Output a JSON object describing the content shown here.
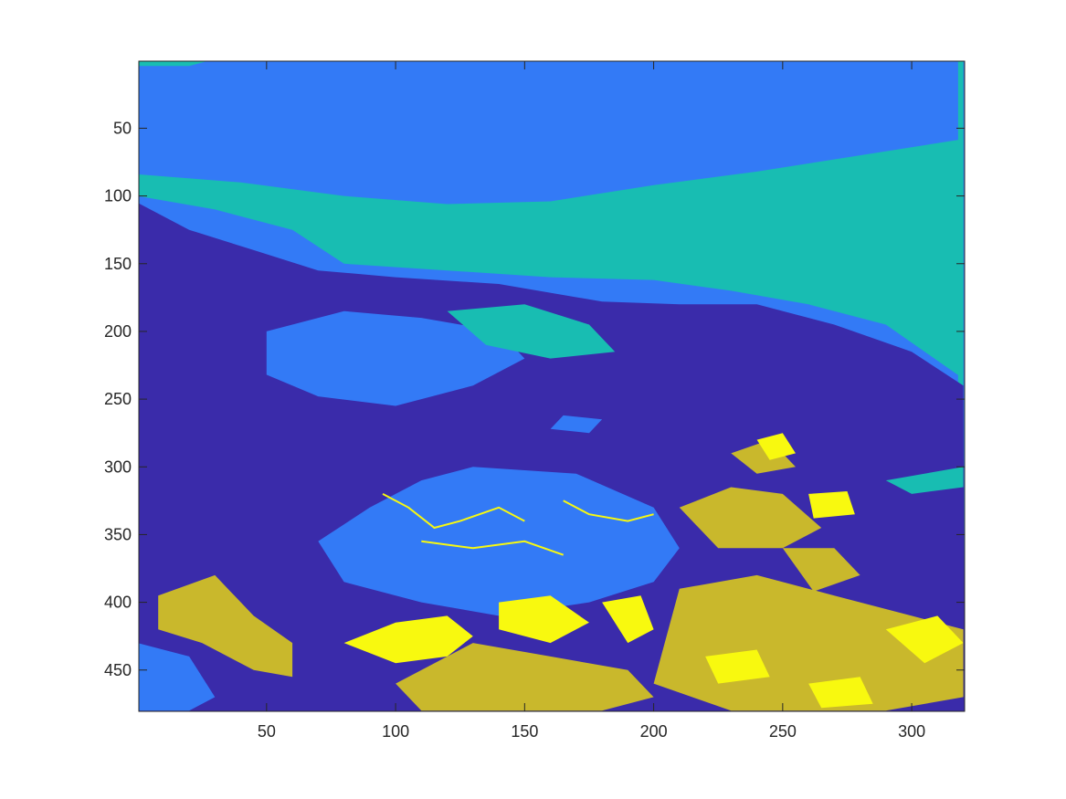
{
  "chart_data": {
    "type": "heatmap",
    "title": "",
    "xlabel": "",
    "ylabel": "",
    "xlim": [
      0.5,
      320.5
    ],
    "ylim": [
      0.5,
      480.5
    ],
    "y_reversed": true,
    "x_ticks": [
      50,
      100,
      150,
      200,
      250,
      300
    ],
    "y_ticks": [
      50,
      100,
      150,
      200,
      250,
      300,
      350,
      400,
      450
    ],
    "x_tick_labels": [
      "50",
      "100",
      "150",
      "200",
      "250",
      "300"
    ],
    "y_tick_labels": [
      "50",
      "100",
      "150",
      "200",
      "250",
      "300",
      "350",
      "400",
      "450"
    ],
    "image_size": {
      "columns": 320,
      "rows": 480
    },
    "classes": [
      {
        "level": 1,
        "color": "#3A2BAA"
      },
      {
        "level": 2,
        "color": "#337AF6"
      },
      {
        "level": 3,
        "color": "#18BDB2"
      },
      {
        "level": 4,
        "color": "#C9B82C"
      },
      {
        "level": 5,
        "color": "#F8F90F"
      }
    ],
    "region_boundaries": {
      "top_teal_patch": [
        [
          0,
          4
        ],
        [
          20,
          4
        ],
        [
          28,
          0
        ],
        [
          0,
          0
        ]
      ],
      "upper_blue_lower_edge": [
        [
          0,
          84
        ],
        [
          40,
          90
        ],
        [
          80,
          100
        ],
        [
          120,
          106
        ],
        [
          160,
          104
        ],
        [
          200,
          92
        ],
        [
          240,
          82
        ],
        [
          280,
          70
        ],
        [
          320,
          58
        ]
      ],
      "teal_lower_edge": [
        [
          0,
          100
        ],
        [
          30,
          110
        ],
        [
          60,
          125
        ],
        [
          80,
          150
        ],
        [
          120,
          155
        ],
        [
          160,
          160
        ],
        [
          200,
          162
        ],
        [
          230,
          170
        ],
        [
          260,
          180
        ],
        [
          290,
          195
        ],
        [
          320,
          235
        ]
      ],
      "light_blue_lower_edge": [
        [
          0,
          120
        ],
        [
          20,
          135
        ],
        [
          50,
          148
        ],
        [
          70,
          160
        ],
        [
          90,
          170
        ],
        [
          110,
          175
        ],
        [
          140,
          190
        ],
        [
          170,
          196
        ],
        [
          185,
          208
        ],
        [
          210,
          195
        ],
        [
          240,
          185
        ],
        [
          260,
          190
        ],
        [
          280,
          205
        ],
        [
          320,
          240
        ]
      ],
      "dark_region_upper_edge": [
        [
          0,
          105
        ],
        [
          20,
          125
        ],
        [
          45,
          140
        ],
        [
          70,
          155
        ],
        [
          100,
          160
        ],
        [
          140,
          165
        ],
        [
          180,
          178
        ],
        [
          210,
          180
        ],
        [
          240,
          180
        ],
        [
          270,
          195
        ],
        [
          300,
          215
        ],
        [
          320,
          240
        ]
      ]
    }
  }
}
